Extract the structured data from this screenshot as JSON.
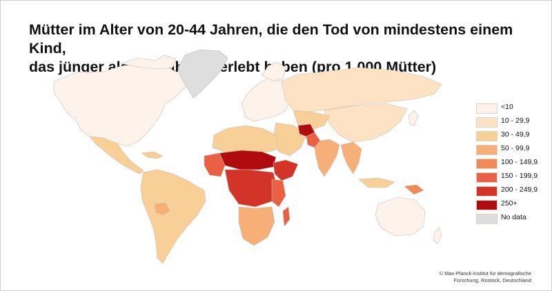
{
  "title": {
    "line1": "Mütter im Alter von 20-44 Jahren, die den Tod von mindestens einem Kind,",
    "line2": "das jünger als ein Jahr ist, erlebt haben (pro 1.000 Mütter)"
  },
  "legend": {
    "items": [
      {
        "label": "<10",
        "color": "#fdf3ea"
      },
      {
        "label": "10 - 29,9",
        "color": "#fde3c4"
      },
      {
        "label": "30 - 49,9",
        "color": "#f9cf98"
      },
      {
        "label": "50 - 99,9",
        "color": "#f6b077"
      },
      {
        "label": "100 - 149,9",
        "color": "#f28a55"
      },
      {
        "label": "150 - 199,9",
        "color": "#e96044"
      },
      {
        "label": "200 - 249,9",
        "color": "#d23527"
      },
      {
        "label": "250+",
        "color": "#b00b0e"
      },
      {
        "label": "No data",
        "color": "#dedede"
      }
    ]
  },
  "credit": {
    "line1": "© Max-Planck-Institut für demografische",
    "line2": "Forschung, Rostock, Deutschland"
  },
  "regions": [
    {
      "name": "Nordamerika",
      "color": "#fdf3ea"
    },
    {
      "name": "Grönland",
      "color": "#dedede"
    },
    {
      "name": "Europa",
      "color": "#fdf3ea"
    },
    {
      "name": "Russland",
      "color": "#fde3c4"
    },
    {
      "name": "Afrika",
      "color": "#e96044"
    },
    {
      "name": "Sahelzone",
      "color": "#b00b0e"
    },
    {
      "name": "Südamerika",
      "color": "#f9cf98"
    },
    {
      "name": "Australien",
      "color": "#fdf3ea"
    },
    {
      "name": "Afghanistan",
      "color": "#b00b0e"
    },
    {
      "name": "Indien",
      "color": "#f6b077"
    }
  ]
}
